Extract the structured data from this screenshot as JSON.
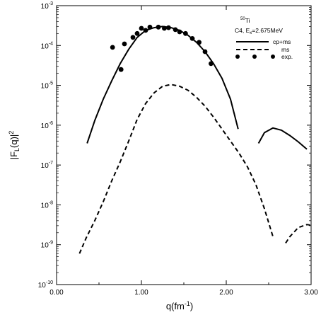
{
  "chart_data": {
    "type": "line",
    "xlabel": {
      "main": "q(fm",
      "sup": "-1",
      "end": ")"
    },
    "ylabel": {
      "pre": "|F",
      "sub": "L",
      "mid": "(q)|",
      "sup": "2"
    },
    "xlim": [
      0,
      3
    ],
    "ylim": [
      1e-10,
      0.001
    ],
    "yscale": "log",
    "x_ticks": [
      0,
      1,
      2,
      3
    ],
    "x_tick_labels": [
      "0.00",
      "1.00",
      "2.00",
      "3.00"
    ],
    "y_ticks": [
      1e-10,
      1e-09,
      1e-08,
      1e-07,
      1e-06,
      1e-05,
      0.0001,
      0.001
    ],
    "y_tick_labels": [
      {
        "base": "10",
        "exp": "-10"
      },
      {
        "base": "10",
        "exp": "-9"
      },
      {
        "base": "10",
        "exp": "-8"
      },
      {
        "base": "10",
        "exp": "-7"
      },
      {
        "base": "10",
        "exp": "-6"
      },
      {
        "base": "10",
        "exp": "-5"
      },
      {
        "base": "10",
        "exp": "-4"
      },
      {
        "base": "10",
        "exp": "-3"
      }
    ],
    "annotation": {
      "nucleus": {
        "sup": "50",
        "name": "Ti"
      },
      "transition": {
        "pre": "C4, E",
        "sub": "x",
        "post": "=2.675MeV"
      }
    },
    "legend_position": "top-right",
    "series": [
      {
        "name": "cp+ms",
        "style": "solid",
        "segments": [
          [
            [
              0.36,
              3.5e-07
            ],
            [
              0.45,
              1.3e-06
            ],
            [
              0.55,
              4.5e-06
            ],
            [
              0.65,
              1.3e-05
            ],
            [
              0.75,
              3.5e-05
            ],
            [
              0.85,
              8e-05
            ],
            [
              0.95,
              0.00016
            ],
            [
              1.05,
              0.00024
            ],
            [
              1.15,
              0.00028
            ],
            [
              1.25,
              0.0003
            ],
            [
              1.35,
              0.00028
            ],
            [
              1.45,
              0.00024
            ],
            [
              1.55,
              0.00018
            ],
            [
              1.65,
              0.00012
            ],
            [
              1.75,
              7e-05
            ],
            [
              1.85,
              3.5e-05
            ],
            [
              1.95,
              1.5e-05
            ],
            [
              2.05,
              4.5e-06
            ],
            [
              2.14,
              8e-07
            ]
          ],
          [
            [
              2.38,
              3.5e-07
            ],
            [
              2.45,
              6.5e-07
            ],
            [
              2.55,
              8.5e-07
            ],
            [
              2.65,
              7.5e-07
            ],
            [
              2.75,
              5.5e-07
            ],
            [
              2.85,
              3.8e-07
            ],
            [
              2.95,
              2.5e-07
            ]
          ]
        ]
      },
      {
        "name": "ms",
        "style": "dashed",
        "segments": [
          [
            [
              0.27,
              6e-10
            ],
            [
              0.35,
              1.5e-09
            ],
            [
              0.45,
              4e-09
            ],
            [
              0.55,
              1.2e-08
            ],
            [
              0.65,
              4e-08
            ],
            [
              0.75,
              1.2e-07
            ],
            [
              0.85,
              4e-07
            ],
            [
              0.95,
              1.4e-06
            ],
            [
              1.05,
              3.5e-06
            ],
            [
              1.15,
              6.5e-06
            ],
            [
              1.25,
              9.5e-06
            ],
            [
              1.35,
              1.05e-05
            ],
            [
              1.45,
              9.5e-06
            ],
            [
              1.55,
              7.5e-06
            ],
            [
              1.65,
              5e-06
            ],
            [
              1.75,
              3e-06
            ],
            [
              1.85,
              1.6e-06
            ],
            [
              1.95,
              8e-07
            ],
            [
              2.05,
              4e-07
            ],
            [
              2.15,
              2e-07
            ],
            [
              2.25,
              9e-08
            ],
            [
              2.35,
              3.2e-08
            ],
            [
              2.45,
              8e-09
            ],
            [
              2.55,
              1.6e-09
            ]
          ],
          [
            [
              2.7,
              1.1e-09
            ],
            [
              2.75,
              1.6e-09
            ],
            [
              2.85,
              2.7e-09
            ],
            [
              2.95,
              3.2e-09
            ],
            [
              3.0,
              3.1e-09
            ]
          ]
        ]
      },
      {
        "name": "exp.",
        "style": "markers",
        "points": [
          [
            0.66,
            9e-05
          ],
          [
            0.76,
            2.5e-05
          ],
          [
            0.8,
            0.00011
          ],
          [
            0.9,
            0.00016
          ],
          [
            0.95,
            0.0002
          ],
          [
            1.0,
            0.00027
          ],
          [
            1.05,
            0.00024
          ],
          [
            1.1,
            0.00029
          ],
          [
            1.2,
            0.00029
          ],
          [
            1.27,
            0.00027
          ],
          [
            1.32,
            0.00028
          ],
          [
            1.4,
            0.00025
          ],
          [
            1.45,
            0.00022
          ],
          [
            1.52,
            0.0002
          ],
          [
            1.6,
            0.00015
          ],
          [
            1.68,
            0.00012
          ],
          [
            1.75,
            7e-05
          ],
          [
            1.82,
            3.5e-05
          ]
        ]
      }
    ]
  }
}
